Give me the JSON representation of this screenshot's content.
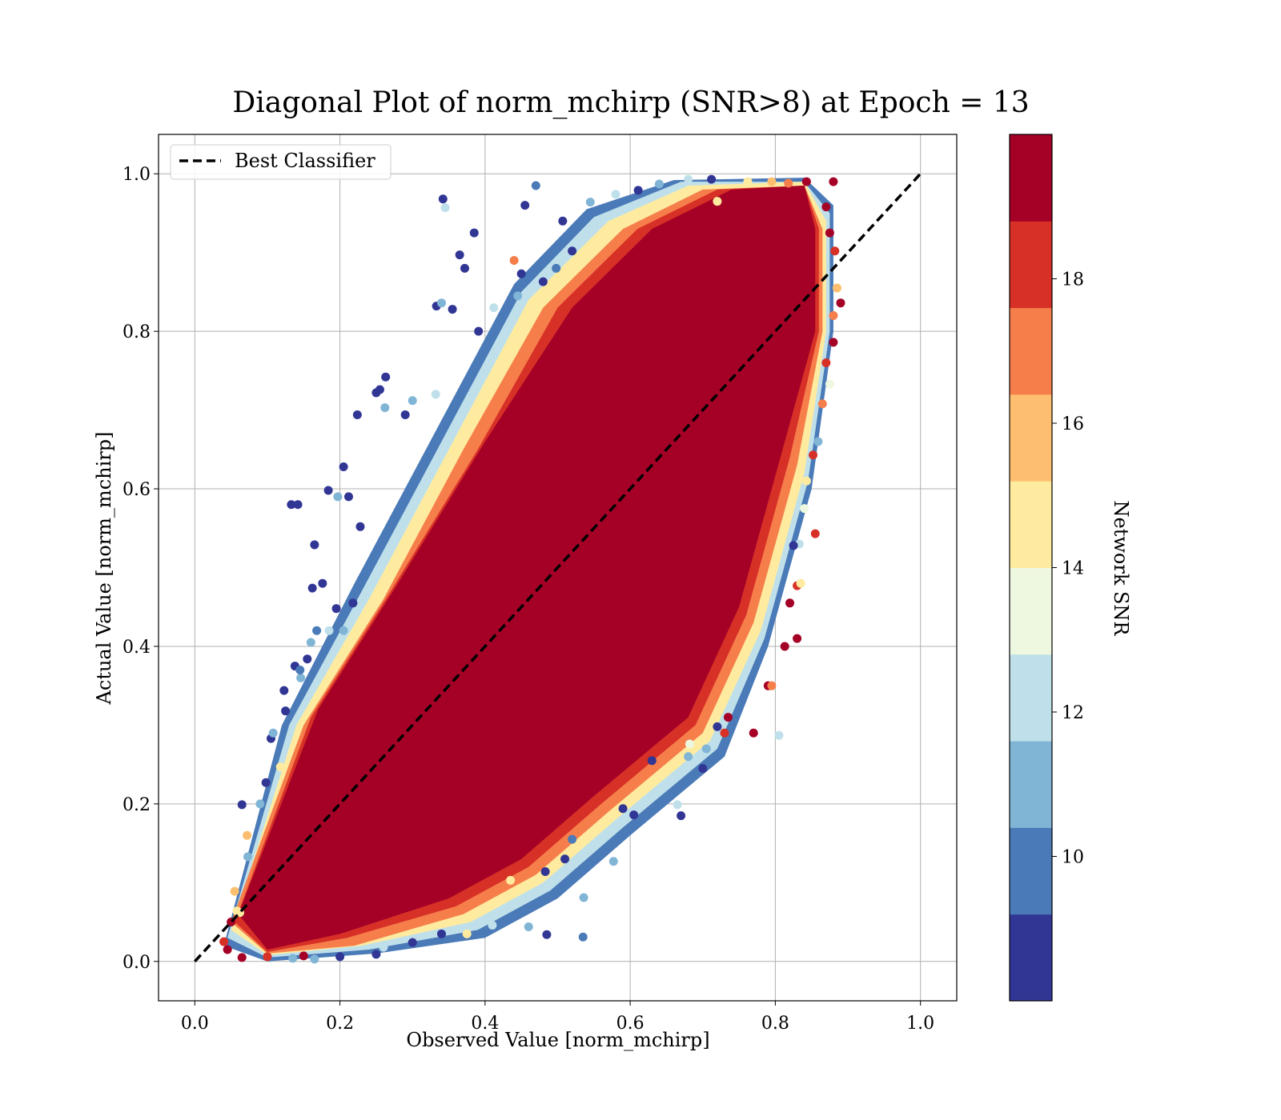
{
  "chart_data": {
    "type": "scatter",
    "title": "Diagonal Plot of norm_mchirp (SNR>8) at Epoch = 13",
    "xlabel": "Observed Value [norm_mchirp]",
    "ylabel": "Actual Value [norm_mchirp]",
    "xlim": [
      -0.05,
      1.05
    ],
    "ylim": [
      -0.05,
      1.05
    ],
    "xticks": [
      "0.0",
      "0.2",
      "0.4",
      "0.6",
      "0.8",
      "1.0"
    ],
    "yticks": [
      "0.0",
      "0.2",
      "0.4",
      "0.6",
      "0.8",
      "1.0"
    ],
    "grid": true,
    "legend": {
      "position": "top-left",
      "entries": [
        "Best Classifier"
      ]
    },
    "reference_line": {
      "name": "Best Classifier",
      "style": "dashed",
      "color": "#000000",
      "x": [
        0,
        1
      ],
      "y": [
        0,
        1
      ]
    },
    "colorbar": {
      "label": "Network SNR",
      "range": [
        8,
        20
      ],
      "ticks": [
        "10",
        "12",
        "14",
        "16",
        "18"
      ],
      "bins": [
        {
          "from": 8,
          "to": 9.2,
          "color": "#313695"
        },
        {
          "from": 9.2,
          "to": 10.4,
          "color": "#4a7ab7"
        },
        {
          "from": 10.4,
          "to": 11.6,
          "color": "#81b5d6"
        },
        {
          "from": 11.6,
          "to": 12.8,
          "color": "#bfe0ea"
        },
        {
          "from": 12.8,
          "to": 14.0,
          "color": "#eef7e0"
        },
        {
          "from": 14.0,
          "to": 15.2,
          "color": "#feeba0"
        },
        {
          "from": 15.2,
          "to": 16.4,
          "color": "#fdbf6f"
        },
        {
          "from": 16.4,
          "to": 17.6,
          "color": "#f67e4b"
        },
        {
          "from": 17.6,
          "to": 18.8,
          "color": "#d73027"
        },
        {
          "from": 18.8,
          "to": 20.0,
          "color": "#a50026"
        }
      ]
    },
    "points": [
      [
        0.342,
        0.968,
        8.5
      ],
      [
        0.345,
        0.957,
        12.0
      ],
      [
        0.372,
        0.88,
        8.5
      ],
      [
        0.385,
        0.925,
        9.0
      ],
      [
        0.455,
        0.96,
        8.5
      ],
      [
        0.47,
        0.985,
        9.5
      ],
      [
        0.507,
        0.94,
        8.5
      ],
      [
        0.545,
        0.964,
        10.5
      ],
      [
        0.58,
        0.974,
        12.0
      ],
      [
        0.611,
        0.979,
        9.0
      ],
      [
        0.64,
        0.987,
        10.5
      ],
      [
        0.68,
        0.993,
        12.5
      ],
      [
        0.712,
        0.993,
        9.0
      ],
      [
        0.72,
        0.965,
        15.0
      ],
      [
        0.333,
        0.832,
        8.5
      ],
      [
        0.34,
        0.836,
        11.0
      ],
      [
        0.355,
        0.828,
        8.5
      ],
      [
        0.365,
        0.897,
        9.0
      ],
      [
        0.391,
        0.8,
        8.5
      ],
      [
        0.412,
        0.83,
        12.0
      ],
      [
        0.45,
        0.873,
        8.5
      ],
      [
        0.44,
        0.89,
        17.0
      ],
      [
        0.48,
        0.863,
        9.0
      ],
      [
        0.445,
        0.845,
        11.5
      ],
      [
        0.498,
        0.88,
        10.0
      ],
      [
        0.52,
        0.902,
        8.5
      ],
      [
        0.263,
        0.742,
        8.5
      ],
      [
        0.25,
        0.722,
        8.5
      ],
      [
        0.255,
        0.726,
        9.0
      ],
      [
        0.29,
        0.694,
        8.5
      ],
      [
        0.262,
        0.703,
        10.5
      ],
      [
        0.224,
        0.694,
        8.5
      ],
      [
        0.3,
        0.712,
        11.0
      ],
      [
        0.332,
        0.72,
        12.0
      ],
      [
        0.205,
        0.628,
        8.5
      ],
      [
        0.184,
        0.598,
        8.5
      ],
      [
        0.212,
        0.59,
        8.5
      ],
      [
        0.133,
        0.58,
        8.5
      ],
      [
        0.142,
        0.58,
        8.5
      ],
      [
        0.165,
        0.529,
        8.5
      ],
      [
        0.228,
        0.552,
        9.0
      ],
      [
        0.197,
        0.59,
        11.0
      ],
      [
        0.176,
        0.48,
        8.5
      ],
      [
        0.162,
        0.474,
        8.5
      ],
      [
        0.195,
        0.448,
        9.0
      ],
      [
        0.218,
        0.455,
        8.5
      ],
      [
        0.138,
        0.375,
        8.5
      ],
      [
        0.155,
        0.384,
        8.5
      ],
      [
        0.16,
        0.405,
        10.5
      ],
      [
        0.123,
        0.344,
        8.5
      ],
      [
        0.125,
        0.318,
        8.5
      ],
      [
        0.146,
        0.36,
        11.0
      ],
      [
        0.145,
        0.37,
        10.0
      ],
      [
        0.185,
        0.42,
        12.0
      ],
      [
        0.205,
        0.42,
        11.0
      ],
      [
        0.168,
        0.42,
        10.0
      ],
      [
        0.105,
        0.283,
        8.5
      ],
      [
        0.108,
        0.29,
        10.5
      ],
      [
        0.118,
        0.247,
        14.5
      ],
      [
        0.098,
        0.227,
        8.5
      ],
      [
        0.09,
        0.2,
        11.0
      ],
      [
        0.065,
        0.199,
        8.5
      ],
      [
        0.073,
        0.133,
        10.5
      ],
      [
        0.072,
        0.16,
        16.0
      ],
      [
        0.055,
        0.089,
        16.0
      ],
      [
        0.058,
        0.064,
        15.0
      ],
      [
        0.062,
        0.062,
        14.0
      ],
      [
        0.05,
        0.05,
        19.5
      ],
      [
        0.04,
        0.025,
        18.5
      ],
      [
        0.045,
        0.015,
        19.5
      ],
      [
        0.065,
        0.005,
        19.5
      ],
      [
        0.1,
        0.006,
        18.0
      ],
      [
        0.135,
        0.004,
        11.0
      ],
      [
        0.15,
        0.007,
        19.5
      ],
      [
        0.165,
        0.003,
        10.5
      ],
      [
        0.2,
        0.006,
        9.0
      ],
      [
        0.25,
        0.009,
        8.5
      ],
      [
        0.26,
        0.018,
        12.0
      ],
      [
        0.3,
        0.024,
        9.0
      ],
      [
        0.34,
        0.035,
        8.5
      ],
      [
        0.375,
        0.035,
        14.0
      ],
      [
        0.41,
        0.046,
        12.0
      ],
      [
        0.46,
        0.044,
        11.0
      ],
      [
        0.485,
        0.034,
        9.0
      ],
      [
        0.535,
        0.031,
        10.0
      ],
      [
        0.435,
        0.103,
        14.5
      ],
      [
        0.51,
        0.13,
        8.5
      ],
      [
        0.536,
        0.081,
        11.0
      ],
      [
        0.52,
        0.155,
        9.5
      ],
      [
        0.483,
        0.114,
        8.5
      ],
      [
        0.577,
        0.127,
        10.5
      ],
      [
        0.59,
        0.194,
        9.0
      ],
      [
        0.605,
        0.186,
        8.5
      ],
      [
        0.63,
        0.255,
        9.0
      ],
      [
        0.68,
        0.26,
        10.5
      ],
      [
        0.67,
        0.185,
        8.5
      ],
      [
        0.665,
        0.199,
        12.0
      ],
      [
        0.682,
        0.276,
        13.0
      ],
      [
        0.7,
        0.245,
        8.5
      ],
      [
        0.705,
        0.27,
        11.0
      ],
      [
        0.72,
        0.298,
        9.0
      ],
      [
        0.735,
        0.31,
        19.5
      ],
      [
        0.73,
        0.29,
        18.0
      ],
      [
        0.77,
        0.29,
        19.5
      ],
      [
        0.805,
        0.287,
        12.0
      ],
      [
        0.79,
        0.35,
        19.5
      ],
      [
        0.795,
        0.35,
        17.0
      ],
      [
        0.83,
        0.41,
        19.5
      ],
      [
        0.813,
        0.4,
        19.0
      ],
      [
        0.82,
        0.455,
        19.5
      ],
      [
        0.83,
        0.477,
        18.5
      ],
      [
        0.835,
        0.48,
        14.5
      ],
      [
        0.833,
        0.53,
        12.0
      ],
      [
        0.825,
        0.528,
        8.5
      ],
      [
        0.855,
        0.543,
        18.5
      ],
      [
        0.852,
        0.643,
        18.0
      ],
      [
        0.84,
        0.575,
        13.0
      ],
      [
        0.843,
        0.61,
        15.0
      ],
      [
        0.859,
        0.66,
        11.0
      ],
      [
        0.875,
        0.733,
        13.5
      ],
      [
        0.865,
        0.708,
        17.0
      ],
      [
        0.88,
        0.786,
        19.5
      ],
      [
        0.87,
        0.76,
        18.0
      ],
      [
        0.89,
        0.836,
        19.5
      ],
      [
        0.885,
        0.855,
        16.0
      ],
      [
        0.88,
        0.82,
        17.0
      ],
      [
        0.882,
        0.902,
        18.0
      ],
      [
        0.875,
        0.925,
        19.5
      ],
      [
        0.87,
        0.958,
        19.0
      ],
      [
        0.88,
        0.99,
        19.5
      ],
      [
        0.843,
        0.99,
        19.5
      ],
      [
        0.818,
        0.988,
        17.0
      ],
      [
        0.795,
        0.99,
        16.0
      ],
      [
        0.762,
        0.99,
        14.0
      ]
    ]
  }
}
